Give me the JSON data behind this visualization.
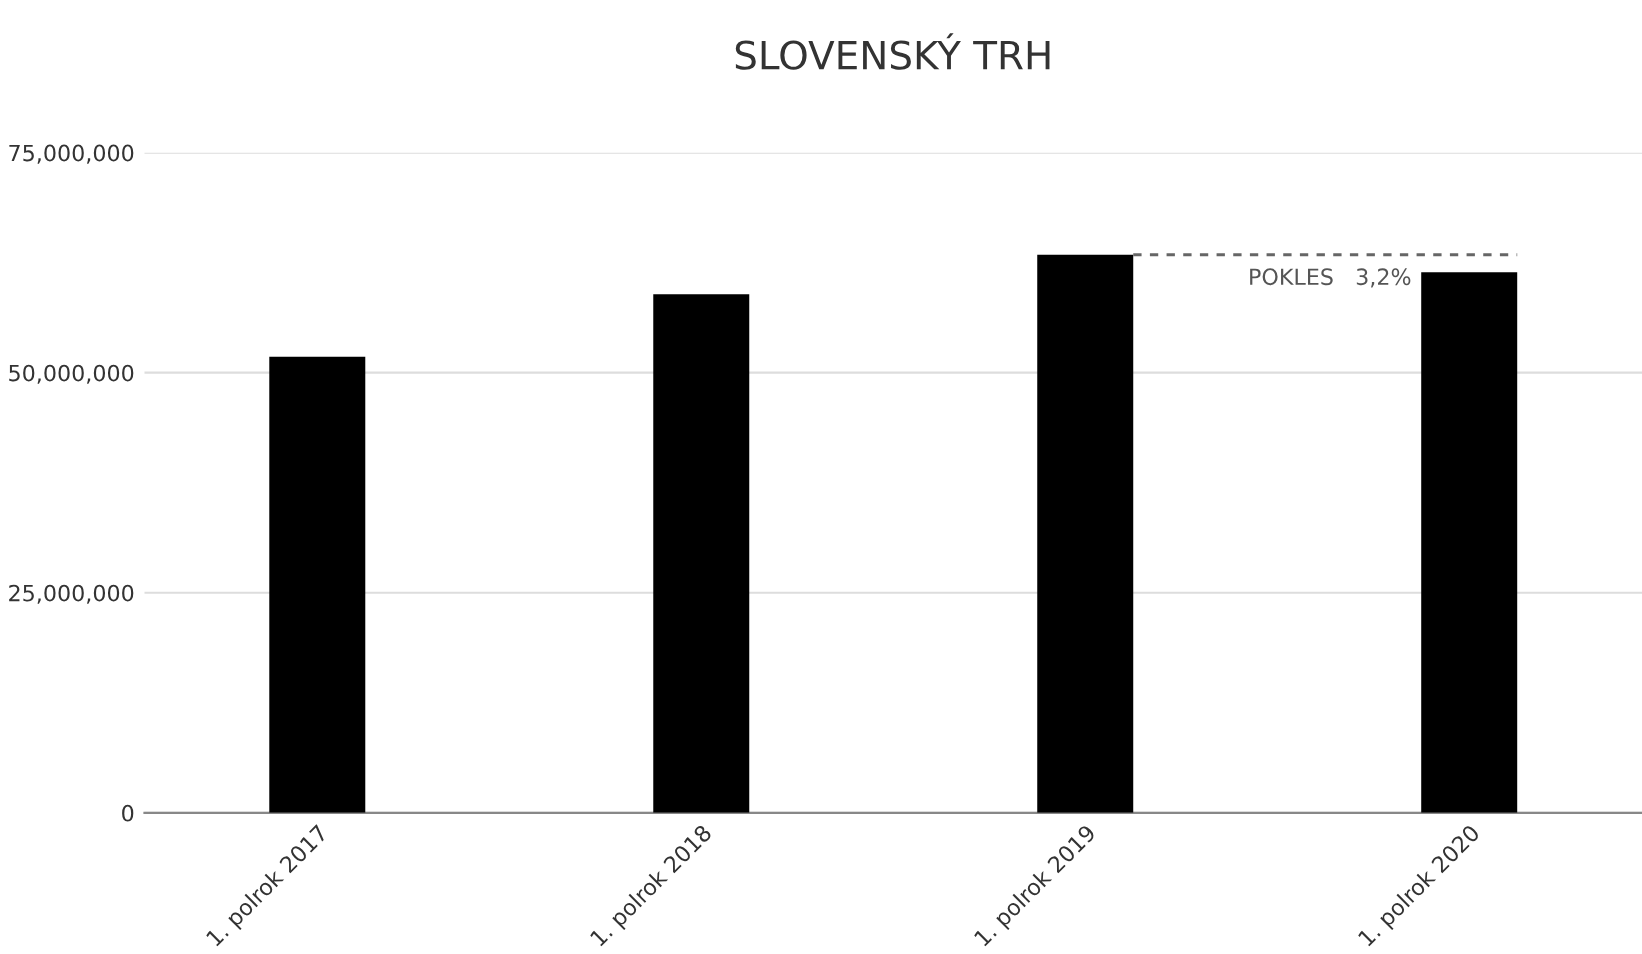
{
  "chart_data": {
    "type": "bar",
    "title": "SLOVENSKÝ TRH",
    "categories": [
      "1. polrok 2017",
      "1. polrok 2018",
      "1. polrok 2019",
      "1. polrok 2020"
    ],
    "values": [
      51800000,
      58900000,
      63400000,
      61400000
    ],
    "color": "#000000",
    "ylim": [
      0,
      75000000
    ],
    "yticks": [
      {
        "value": 0,
        "label": "0"
      },
      {
        "value": 25000000,
        "label": "25,000,000"
      },
      {
        "value": 50000000,
        "label": "50,000,000"
      },
      {
        "value": 75000000,
        "label": "75,000,000"
      }
    ],
    "grid": "y",
    "ref_lines": [
      {
        "axis": "y",
        "value": 63400000,
        "label": "POKLES   3,2%",
        "color": "#666666",
        "line_style": "dashed"
      }
    ]
  }
}
